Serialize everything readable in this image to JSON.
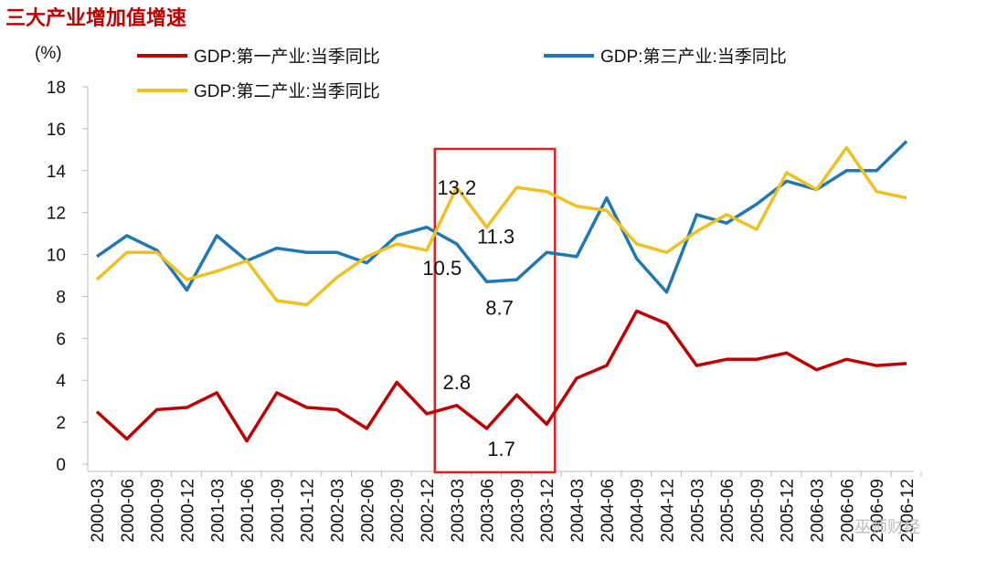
{
  "chart_data": {
    "type": "line",
    "title": "三大产业增加值增速",
    "ylabel": "(%)",
    "xlabel": "",
    "ylim": [
      0,
      18
    ],
    "yticks": [
      "0",
      "2",
      "4",
      "6",
      "8",
      "10",
      "12",
      "14",
      "16",
      "18"
    ],
    "grid": false,
    "legend_position": "top",
    "categories": [
      "2000-03",
      "2000-06",
      "2000-09",
      "2000-12",
      "2001-03",
      "2001-06",
      "2001-09",
      "2001-12",
      "2002-03",
      "2002-06",
      "2002-09",
      "2002-12",
      "2003-03",
      "2003-06",
      "2003-09",
      "2003-12",
      "2004-03",
      "2004-06",
      "2004-09",
      "2004-12",
      "2005-03",
      "2005-06",
      "2005-09",
      "2005-12",
      "2006-03",
      "2006-06",
      "2006-09",
      "2006-12"
    ],
    "series": [
      {
        "name": "GDP:第一产业:当季同比",
        "color": "#c00000",
        "values": [
          2.5,
          1.2,
          2.6,
          2.7,
          3.4,
          1.1,
          3.4,
          2.7,
          2.6,
          1.7,
          3.9,
          2.4,
          2.8,
          1.7,
          3.3,
          1.9,
          4.1,
          4.7,
          7.3,
          6.7,
          4.7,
          5.0,
          5.0,
          5.3,
          4.5,
          5.0,
          4.7,
          4.8
        ]
      },
      {
        "name": "GDP:第三产业:当季同比",
        "color": "#1f77b4",
        "values": [
          9.9,
          10.9,
          10.2,
          8.3,
          10.9,
          9.7,
          10.3,
          10.1,
          10.1,
          9.6,
          10.9,
          11.3,
          10.5,
          8.7,
          8.8,
          10.1,
          9.9,
          12.7,
          9.8,
          8.2,
          11.9,
          11.5,
          12.4,
          13.5,
          13.1,
          14.0,
          14.0,
          15.4
        ]
      },
      {
        "name": "GDP:第二产业:当季同比",
        "color": "#f0c020",
        "values": [
          8.8,
          10.1,
          10.1,
          8.8,
          9.2,
          9.7,
          7.8,
          7.6,
          8.9,
          9.9,
          10.5,
          10.2,
          13.2,
          11.3,
          13.2,
          13.0,
          12.3,
          12.1,
          10.5,
          10.1,
          11.1,
          11.9,
          11.2,
          13.9,
          13.1,
          15.1,
          13.0,
          12.7
        ]
      }
    ],
    "annotations": [
      {
        "text": "13.2",
        "series": 2,
        "category": "2003-03"
      },
      {
        "text": "11.3",
        "series": 2,
        "category": "2003-06"
      },
      {
        "text": "10.5",
        "series": 1,
        "category": "2003-03"
      },
      {
        "text": "8.7",
        "series": 1,
        "category": "2003-06"
      },
      {
        "text": "2.8",
        "series": 0,
        "category": "2003-03"
      },
      {
        "text": "1.7",
        "series": 0,
        "category": "2003-06"
      }
    ],
    "highlight": {
      "from": "2003-03",
      "to": "2003-12",
      "color": "#e02020"
    }
  },
  "watermark": "巫师财经"
}
